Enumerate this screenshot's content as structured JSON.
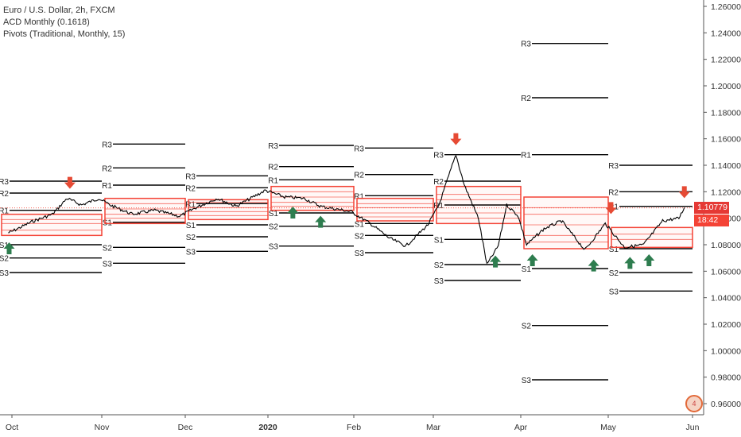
{
  "legend": {
    "symbol": "Euro / U.S. Dollar, 2h, FXCM",
    "indicator1": "ACD Monthly (0.1618)",
    "indicator2": "Pivots (Traditional, Monthly, 15)"
  },
  "price_badge": {
    "value": "1.10779",
    "time": "18:42",
    "color": "#e53935",
    "time_color": "#f44336"
  },
  "logo_text": "4",
  "colors": {
    "line": "#000000",
    "box": "#f44336",
    "up": "#2e7d4f",
    "down": "#e64a34"
  },
  "chart_data": {
    "type": "line",
    "title": "Euro / U.S. Dollar, 2h, FXCM",
    "ylim": [
      0.951,
      1.263
    ],
    "y_ticks": [
      "1.26000",
      "1.24000",
      "1.22000",
      "1.20000",
      "1.18000",
      "1.16000",
      "1.14000",
      "1.12000",
      "1.10000",
      "1.08000",
      "1.06000",
      "1.04000",
      "1.02000",
      "1.00000",
      "0.98000",
      "0.96000"
    ],
    "x_ticks": [
      "Oct",
      "Nov",
      "Dec",
      "2020",
      "Feb",
      "Mar",
      "Apr",
      "May",
      "Jun"
    ],
    "last_price": 1.10779,
    "price_path": [
      [
        "Sep 27",
        1.089
      ],
      [
        "Oct 1",
        1.09
      ],
      [
        "Oct 8",
        1.0975
      ],
      [
        "Oct 15",
        1.103
      ],
      [
        "Oct 20",
        1.115
      ],
      [
        "Oct 25",
        1.11
      ],
      [
        "Oct 31",
        1.115
      ],
      [
        "Nov 4",
        1.11
      ],
      [
        "Nov 12",
        1.103
      ],
      [
        "Nov 20",
        1.106
      ],
      [
        "Nov 29",
        1.1015
      ],
      [
        "Dec 5",
        1.108
      ],
      [
        "Dec 13",
        1.115
      ],
      [
        "Dec 20",
        1.109
      ],
      [
        "Dec 31",
        1.121
      ],
      [
        "Jan 7",
        1.116
      ],
      [
        "Jan 14",
        1.115
      ],
      [
        "Jan 20",
        1.109
      ],
      [
        "Jan 31",
        1.105
      ],
      [
        "Feb 7",
        1.096
      ],
      [
        "Feb 14",
        1.085
      ],
      [
        "Feb 20",
        1.079
      ],
      [
        "Feb 28",
        1.095
      ],
      [
        "Mar 3",
        1.11
      ],
      [
        "Mar 9",
        1.148
      ],
      [
        "Mar 12",
        1.125
      ],
      [
        "Mar 17",
        1.1
      ],
      [
        "Mar 20",
        1.065
      ],
      [
        "Mar 24",
        1.079
      ],
      [
        "Mar 27",
        1.11
      ],
      [
        "Mar 31",
        1.102
      ],
      [
        "Apr 3",
        1.08
      ],
      [
        "Apr 9",
        1.092
      ],
      [
        "Apr 15",
        1.098
      ],
      [
        "Apr 23",
        1.076
      ],
      [
        "Apr 30",
        1.096
      ],
      [
        "May 7",
        1.078
      ],
      [
        "May 14",
        1.08
      ],
      [
        "May 21",
        1.098
      ],
      [
        "May 27",
        1.1
      ],
      [
        "May 29",
        1.108
      ]
    ],
    "months": [
      {
        "name": "Oct",
        "acd": {
          "top": 1.087,
          "lines": [
            1.087,
            1.091,
            1.096,
            1.099,
            1.103
          ]
        },
        "pivots": {
          "R3": 1.128,
          "R2": 1.119,
          "R1": 1.106,
          "S1": 1.08,
          "S2": 1.07,
          "S3": 1.059
        },
        "arrows": [
          {
            "dir": "up",
            "at": "Sep 28"
          },
          {
            "dir": "down",
            "at": "Oct 21"
          }
        ]
      },
      {
        "name": "Nov",
        "acd": {
          "lines": [
            1.096,
            1.1,
            1.103,
            1.107,
            1.111,
            1.115
          ]
        },
        "pivots": {
          "R3": 1.156,
          "R2": 1.138,
          "R1": 1.125,
          "S1": 1.097,
          "S2": 1.078,
          "S3": 1.066
        },
        "arrows": []
      },
      {
        "name": "Dec",
        "acd": {
          "lines": [
            1.099,
            1.102,
            1.105,
            1.108,
            1.112,
            1.114
          ]
        },
        "pivots": {
          "R3": 1.132,
          "R2": 1.123,
          "R1": 1.111,
          "S1": 1.095,
          "S2": 1.086,
          "S3": 1.075
        },
        "arrows": []
      },
      {
        "name": "2020",
        "acd": {
          "lines": [
            1.106,
            1.109,
            1.112,
            1.116,
            1.12,
            1.124
          ]
        },
        "pivots": {
          "R3": 1.155,
          "R2": 1.139,
          "R1": 1.129,
          "S1": 1.104,
          "S2": 1.094,
          "S3": 1.079
        },
        "arrows": [
          {
            "dir": "up",
            "at": "Jan 10"
          },
          {
            "dir": "up",
            "at": "Jan 20"
          }
        ]
      },
      {
        "name": "Feb",
        "acd": {
          "lines": [
            1.098,
            1.101,
            1.104,
            1.108,
            1.111,
            1.115
          ]
        },
        "pivots": {
          "R3": 1.153,
          "R2": 1.133,
          "R1": 1.117,
          "S1": 1.096,
          "S2": 1.087,
          "S3": 1.074
        },
        "arrows": []
      },
      {
        "name": "Mar",
        "acd": {
          "lines": [
            1.096,
            1.1,
            1.104,
            1.114,
            1.118,
            1.124
          ]
        },
        "pivots": {
          "R3": 1.148,
          "R2": 1.128,
          "R1": 1.11,
          "S1": 1.084,
          "S2": 1.065,
          "S3": 1.053
        },
        "arrows": [
          {
            "dir": "down",
            "at": "Mar 9"
          },
          {
            "dir": "up",
            "at": "Mar 23"
          }
        ]
      },
      {
        "name": "Apr",
        "acd": {
          "lines": [
            1.077,
            1.082,
            1.087,
            1.095,
            1.103,
            1.108,
            1.116
          ]
        },
        "pivots": {
          "R3": 1.232,
          "R2": 1.191,
          "R1": 1.148,
          "S1": 1.062,
          "S2": 1.019,
          "S3": 0.978
        },
        "arrows": [
          {
            "dir": "up",
            "at": "Apr 5"
          },
          {
            "dir": "up",
            "at": "Apr 26"
          }
        ]
      },
      {
        "name": "May",
        "acd": {
          "lines": [
            1.078,
            1.084,
            1.088,
            1.093
          ]
        },
        "pivots": {
          "R3": 1.14,
          "R2": 1.12,
          "R1": 1.109,
          "S1": 1.077,
          "S2": 1.059,
          "S3": 1.045
        },
        "arrows": [
          {
            "dir": "down",
            "at": "May 2"
          },
          {
            "dir": "up",
            "at": "May 9"
          },
          {
            "dir": "up",
            "at": "May 16"
          },
          {
            "dir": "down",
            "at": "May 29"
          }
        ]
      }
    ]
  }
}
